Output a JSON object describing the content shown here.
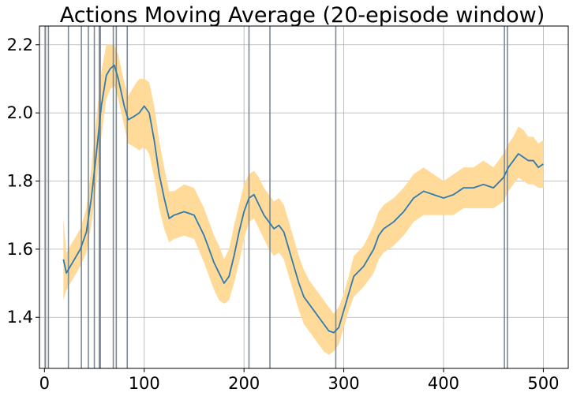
{
  "chart_data": {
    "type": "line",
    "title": "Actions Moving Average (20-episode window)",
    "xlabel": "",
    "ylabel": "",
    "xlim": [
      -5,
      525
    ],
    "ylim": [
      1.25,
      2.255
    ],
    "xticks": [
      0,
      100,
      200,
      300,
      400,
      500
    ],
    "yticks": [
      1.4,
      1.6,
      1.8,
      2.0,
      2.2
    ],
    "grid": true,
    "line_color": "#2f7bb1",
    "band_color": "#ffd892",
    "vline_color": "#7a8a99",
    "vertical_lines": [
      1,
      4,
      24,
      37,
      44,
      50,
      55,
      56,
      69,
      72,
      83,
      205,
      226,
      292,
      461,
      464
    ],
    "series": [
      {
        "x": [
          19,
          22,
          26,
          30,
          36,
          42,
          47,
          52,
          57,
          62,
          66,
          70,
          74,
          80,
          84,
          90,
          95,
          100,
          105,
          110,
          115,
          120,
          125,
          130,
          140,
          150,
          160,
          165,
          170,
          175,
          180,
          185,
          190,
          195,
          200,
          205,
          210,
          215,
          220,
          225,
          230,
          235,
          240,
          245,
          250,
          255,
          260,
          265,
          270,
          275,
          280,
          285,
          290,
          295,
          300,
          305,
          310,
          320,
          330,
          335,
          340,
          350,
          360,
          370,
          380,
          390,
          400,
          410,
          420,
          430,
          440,
          450,
          460,
          465,
          470,
          475,
          480,
          485,
          490,
          495,
          500
        ],
        "y": [
          1.57,
          1.53,
          1.55,
          1.57,
          1.6,
          1.65,
          1.75,
          1.88,
          2.02,
          2.11,
          2.13,
          2.14,
          2.1,
          2.02,
          1.98,
          1.99,
          2.0,
          2.02,
          2.0,
          1.92,
          1.82,
          1.75,
          1.69,
          1.7,
          1.71,
          1.7,
          1.64,
          1.6,
          1.56,
          1.53,
          1.5,
          1.52,
          1.58,
          1.65,
          1.71,
          1.75,
          1.76,
          1.73,
          1.7,
          1.68,
          1.66,
          1.67,
          1.65,
          1.6,
          1.55,
          1.5,
          1.46,
          1.44,
          1.42,
          1.4,
          1.38,
          1.36,
          1.355,
          1.37,
          1.42,
          1.47,
          1.52,
          1.55,
          1.6,
          1.64,
          1.66,
          1.68,
          1.71,
          1.75,
          1.77,
          1.76,
          1.75,
          1.76,
          1.78,
          1.78,
          1.79,
          1.78,
          1.81,
          1.84,
          1.86,
          1.88,
          1.87,
          1.86,
          1.86,
          1.84,
          1.85
        ],
        "lower": [
          1.45,
          1.48,
          1.5,
          1.52,
          1.55,
          1.59,
          1.67,
          1.79,
          1.93,
          2.04,
          2.07,
          2.08,
          2.04,
          1.96,
          1.91,
          1.9,
          1.89,
          1.9,
          1.88,
          1.81,
          1.72,
          1.66,
          1.62,
          1.63,
          1.64,
          1.63,
          1.56,
          1.52,
          1.48,
          1.45,
          1.44,
          1.45,
          1.5,
          1.56,
          1.63,
          1.68,
          1.69,
          1.66,
          1.63,
          1.6,
          1.58,
          1.59,
          1.57,
          1.52,
          1.47,
          1.42,
          1.38,
          1.36,
          1.34,
          1.32,
          1.3,
          1.29,
          1.3,
          1.32,
          1.37,
          1.42,
          1.46,
          1.49,
          1.53,
          1.57,
          1.59,
          1.61,
          1.64,
          1.68,
          1.7,
          1.7,
          1.7,
          1.7,
          1.72,
          1.72,
          1.72,
          1.72,
          1.74,
          1.77,
          1.79,
          1.81,
          1.8,
          1.79,
          1.79,
          1.78,
          1.78
        ],
        "upper": [
          1.69,
          1.59,
          1.61,
          1.63,
          1.66,
          1.72,
          1.84,
          1.98,
          2.12,
          2.2,
          2.2,
          2.2,
          2.17,
          2.09,
          2.05,
          2.08,
          2.1,
          2.1,
          2.09,
          2.02,
          1.92,
          1.84,
          1.77,
          1.77,
          1.79,
          1.78,
          1.72,
          1.68,
          1.64,
          1.61,
          1.57,
          1.6,
          1.67,
          1.73,
          1.79,
          1.82,
          1.83,
          1.81,
          1.78,
          1.76,
          1.74,
          1.75,
          1.73,
          1.68,
          1.63,
          1.58,
          1.54,
          1.51,
          1.49,
          1.47,
          1.45,
          1.43,
          1.41,
          1.43,
          1.47,
          1.52,
          1.58,
          1.61,
          1.67,
          1.71,
          1.73,
          1.75,
          1.78,
          1.82,
          1.84,
          1.82,
          1.8,
          1.82,
          1.84,
          1.84,
          1.86,
          1.84,
          1.88,
          1.91,
          1.93,
          1.96,
          1.95,
          1.93,
          1.93,
          1.91,
          1.92
        ]
      }
    ]
  }
}
